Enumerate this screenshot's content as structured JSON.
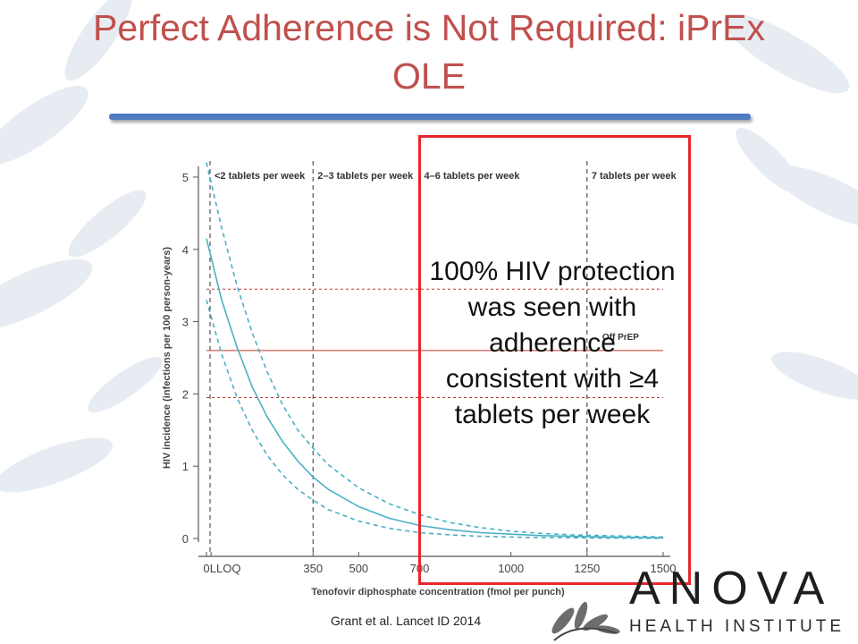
{
  "slide": {
    "title": "Perfect Adherence is Not Required: iPrEx OLE",
    "callout": "100% HIV protection was seen with adherence consistent with ≥4 tablets per week",
    "citation": "Grant et al. Lancet ID 2014"
  },
  "logo": {
    "word": "ANOVA",
    "tagline": "HEALTH INSTITUTE"
  },
  "colors": {
    "title": "#c0504d",
    "title_rule": "#4f7cc0",
    "highlight_box": "#e8262b",
    "curve": "#4ab0c4",
    "reference_lines": "#c0392b"
  },
  "chart_data": {
    "type": "line",
    "ylabel": "HIV incidence (infections per 100 person-years)",
    "xlabel": "Tenofovir diphosphate concentration (fmol per punch)",
    "xlim": [
      0,
      1500
    ],
    "ylim": [
      0,
      5
    ],
    "x_ticks": [
      {
        "value": 0,
        "label": "0"
      },
      {
        "value": 15,
        "label": "LLOQ"
      },
      {
        "value": 350,
        "label": "350"
      },
      {
        "value": 500,
        "label": "500"
      },
      {
        "value": 700,
        "label": "700"
      },
      {
        "value": 1000,
        "label": "1000"
      },
      {
        "value": 1250,
        "label": "1250"
      },
      {
        "value": 1500,
        "label": "1500"
      }
    ],
    "y_ticks": [
      0,
      1,
      2,
      3,
      4,
      5
    ],
    "adherence_bands": [
      {
        "x": 0,
        "label": "<2 tablets per week"
      },
      {
        "x": 350,
        "label": "2–3 tablets per week"
      },
      {
        "x": 700,
        "label": "4–6 tablets per week"
      },
      {
        "x": 1250,
        "label": "7 tablets per week"
      }
    ],
    "reference_lines": [
      {
        "y": 2.6,
        "label": "Off PrEP",
        "style": "solid"
      },
      {
        "y": 3.45,
        "style": "dashed"
      },
      {
        "y": 1.95,
        "style": "dashed"
      }
    ],
    "series": [
      {
        "style": "solid",
        "x": [
          0,
          50,
          100,
          150,
          200,
          250,
          300,
          350,
          400,
          500,
          600,
          700,
          800,
          900,
          1000,
          1100,
          1200,
          1300,
          1400,
          1500
        ],
        "y": [
          4.15,
          3.3,
          2.65,
          2.1,
          1.68,
          1.34,
          1.07,
          0.85,
          0.68,
          0.44,
          0.28,
          0.18,
          0.12,
          0.08,
          0.06,
          0.04,
          0.03,
          0.02,
          0.015,
          0.01
        ]
      },
      {
        "style": "dashed",
        "x": [
          0,
          50,
          100,
          150,
          200,
          250,
          300,
          350,
          400,
          500,
          600,
          700,
          800,
          900,
          1000,
          1100,
          1200,
          1300,
          1400,
          1500
        ],
        "y": [
          5.2,
          4.3,
          3.5,
          2.85,
          2.3,
          1.85,
          1.5,
          1.25,
          1.02,
          0.7,
          0.48,
          0.33,
          0.22,
          0.15,
          0.1,
          0.07,
          0.05,
          0.04,
          0.03,
          0.02
        ]
      },
      {
        "style": "dashed",
        "x": [
          0,
          50,
          100,
          150,
          200,
          250,
          300,
          350,
          400,
          500,
          600,
          700,
          800,
          900,
          1000,
          1100,
          1200,
          1300,
          1400,
          1500
        ],
        "y": [
          3.3,
          2.55,
          1.95,
          1.5,
          1.15,
          0.88,
          0.68,
          0.53,
          0.4,
          0.24,
          0.14,
          0.08,
          0.05,
          0.03,
          0.02,
          0.01,
          0.01,
          0.005,
          0.005,
          0.0
        ]
      }
    ]
  }
}
